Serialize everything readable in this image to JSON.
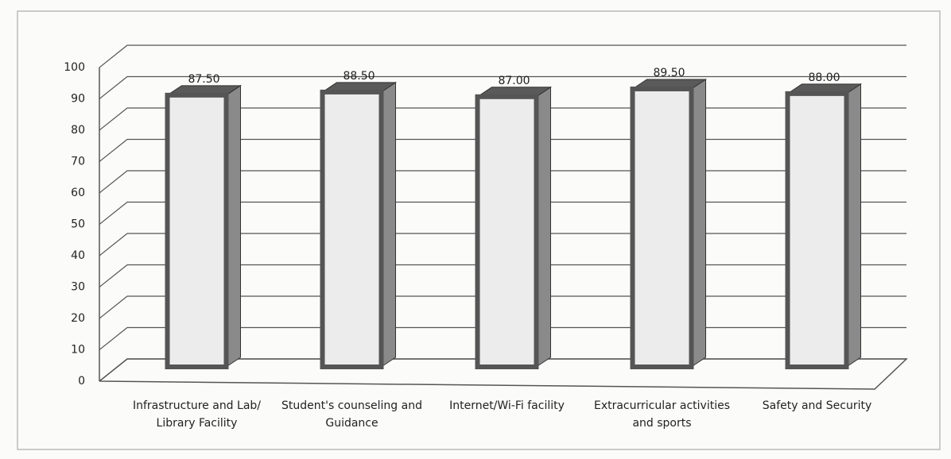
{
  "chart_data": {
    "type": "bar3d",
    "categories": [
      "Infrastructure and Lab/ Library Facility",
      "Student's counseling and Guidance",
      "Internet/Wi-Fi facility",
      "Extracurricular activities and sports",
      "Safety and Security"
    ],
    "values": [
      87.5,
      88.5,
      87,
      89.5,
      88
    ],
    "value_labels": [
      "87.50",
      "88.50",
      "87.00",
      "89.50",
      "88.00"
    ],
    "color": "#ececec",
    "ylim": [
      0,
      100
    ],
    "yticks": [
      0,
      10,
      20,
      30,
      40,
      50,
      60,
      70,
      80,
      90,
      100
    ],
    "grid": true
  }
}
